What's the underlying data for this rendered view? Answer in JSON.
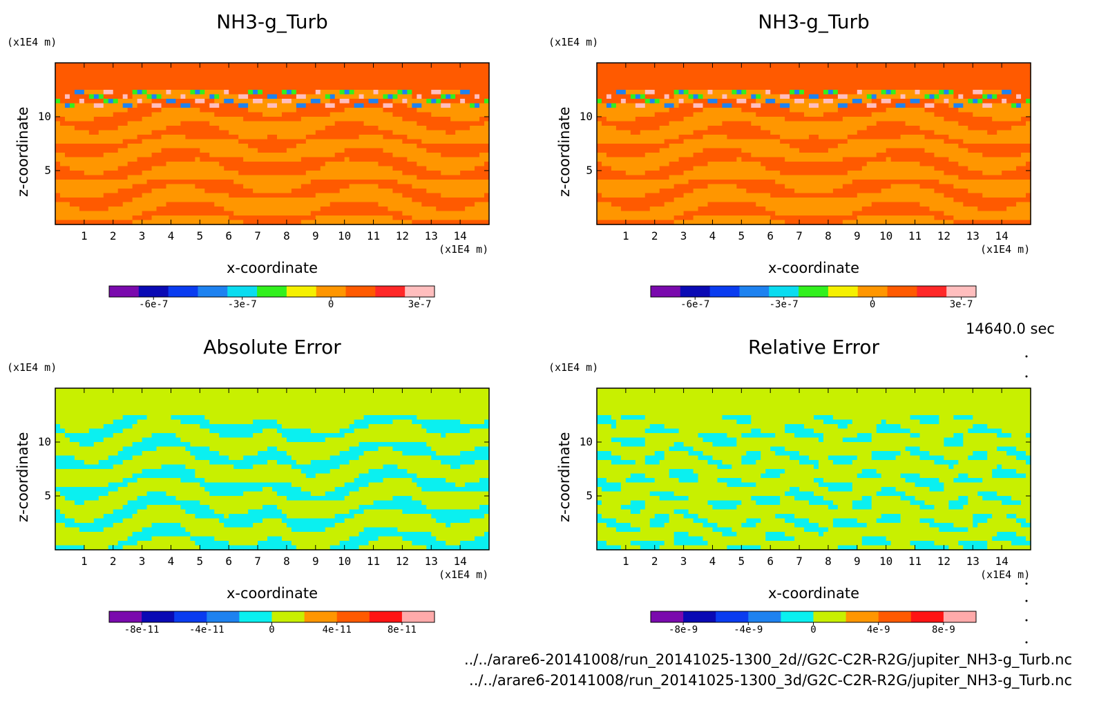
{
  "chart_data": [
    {
      "type": "heatmap",
      "title": "NH3-g_Turb",
      "xlabel": "x-coordinate",
      "ylabel": "z-coordinate",
      "x_unit": "(x1E4 m)",
      "y_unit": "(x1E4 m)",
      "xlim": [
        0,
        15
      ],
      "ylim": [
        0,
        15
      ],
      "x_ticks": [
        "1",
        "2",
        "3",
        "4",
        "5",
        "6",
        "7",
        "8",
        "9",
        "10",
        "11",
        "12",
        "13",
        "14"
      ],
      "y_ticks": [
        "5",
        "10"
      ],
      "colorbar": {
        "colors": [
          "#7a0aad",
          "#0a0ab4",
          "#0a3cf0",
          "#1e82f0",
          "#0adcf0",
          "#32f01e",
          "#f5f000",
          "#ff9600",
          "#ff5a00",
          "#ff2828",
          "#ffbebe"
        ],
        "ticks": [
          {
            "label": "-6e-7",
            "v": -0.6
          },
          {
            "label": "-3e-7",
            "v": -0.3
          },
          {
            "label": "0",
            "v": 0
          },
          {
            "label": "3e-7",
            "v": 0.3
          }
        ],
        "range": [
          -0.75,
          0.35
        ]
      },
      "field": "turb"
    },
    {
      "type": "heatmap",
      "title": "NH3-g_Turb",
      "xlabel": "x-coordinate",
      "ylabel": "z-coordinate",
      "x_unit": "(x1E4 m)",
      "y_unit": "(x1E4 m)",
      "xlim": [
        0,
        15
      ],
      "ylim": [
        0,
        15
      ],
      "x_ticks": [
        "1",
        "2",
        "3",
        "4",
        "5",
        "6",
        "7",
        "8",
        "9",
        "10",
        "11",
        "12",
        "13",
        "14"
      ],
      "y_ticks": [
        "5",
        "10"
      ],
      "colorbar": {
        "colors": [
          "#7a0aad",
          "#0a0ab4",
          "#0a3cf0",
          "#1e82f0",
          "#0adcf0",
          "#32f01e",
          "#f5f000",
          "#ff9600",
          "#ff5a00",
          "#ff2828",
          "#ffbebe"
        ],
        "ticks": [
          {
            "label": "-6e-7",
            "v": -0.6
          },
          {
            "label": "-3e-7",
            "v": -0.3
          },
          {
            "label": "0",
            "v": 0
          },
          {
            "label": "3e-7",
            "v": 0.3
          }
        ],
        "range": [
          -0.75,
          0.35
        ]
      },
      "field": "turb"
    },
    {
      "type": "heatmap",
      "title": "Absolute Error",
      "xlabel": "x-coordinate",
      "ylabel": "z-coordinate",
      "x_unit": "(x1E4 m)",
      "y_unit": "(x1E4 m)",
      "xlim": [
        0,
        15
      ],
      "ylim": [
        0,
        15
      ],
      "x_ticks": [
        "1",
        "2",
        "3",
        "4",
        "5",
        "6",
        "7",
        "8",
        "9",
        "10",
        "11",
        "12",
        "13",
        "14"
      ],
      "y_ticks": [
        "5",
        "10"
      ],
      "colorbar": {
        "colors": [
          "#7a0aad",
          "#0a0ab4",
          "#0a3cf0",
          "#1e82f0",
          "#0af0f0",
          "#c8f000",
          "#ff9600",
          "#ff5a00",
          "#ff1414",
          "#ffaaaa"
        ],
        "ticks": [
          {
            "label": "-8e-11",
            "v": -8
          },
          {
            "label": "-4e-11",
            "v": -4
          },
          {
            "label": "0",
            "v": 0
          },
          {
            "label": "4e-11",
            "v": 4
          },
          {
            "label": "8e-11",
            "v": 8
          }
        ],
        "range": [
          -10,
          10
        ]
      },
      "field": "err"
    },
    {
      "type": "heatmap",
      "title": "Relative Error",
      "xlabel": "x-coordinate",
      "ylabel": "z-coordinate",
      "x_unit": "(x1E4 m)",
      "y_unit": "(x1E4 m)",
      "xlim": [
        0,
        15
      ],
      "ylim": [
        0,
        15
      ],
      "x_ticks": [
        "1",
        "2",
        "3",
        "4",
        "5",
        "6",
        "7",
        "8",
        "9",
        "10",
        "11",
        "12",
        "13",
        "14"
      ],
      "y_ticks": [
        "5",
        "10"
      ],
      "colorbar": {
        "colors": [
          "#7a0aad",
          "#0a0ab4",
          "#0a3cf0",
          "#1e82f0",
          "#0af0f0",
          "#c8f000",
          "#ff9600",
          "#ff5a00",
          "#ff1414",
          "#ffaaaa"
        ],
        "ticks": [
          {
            "label": "-8e-9",
            "v": -8
          },
          {
            "label": "-4e-9",
            "v": -4
          },
          {
            "label": "0",
            "v": 0
          },
          {
            "label": "4e-9",
            "v": 4
          },
          {
            "label": "8e-9",
            "v": 8
          }
        ],
        "range": [
          -10,
          10
        ]
      },
      "field": "err2"
    }
  ],
  "time_label": "14640.0 sec",
  "files": [
    "../../arare6-20141008/run_20141025-1300_2d//G2C-C2R-R2G/jupiter_NH3-g_Turb.nc",
    "../../arare6-20141008/run_20141025-1300_3d/G2C-C2R-R2G/jupiter_NH3-g_Turb.nc"
  ]
}
